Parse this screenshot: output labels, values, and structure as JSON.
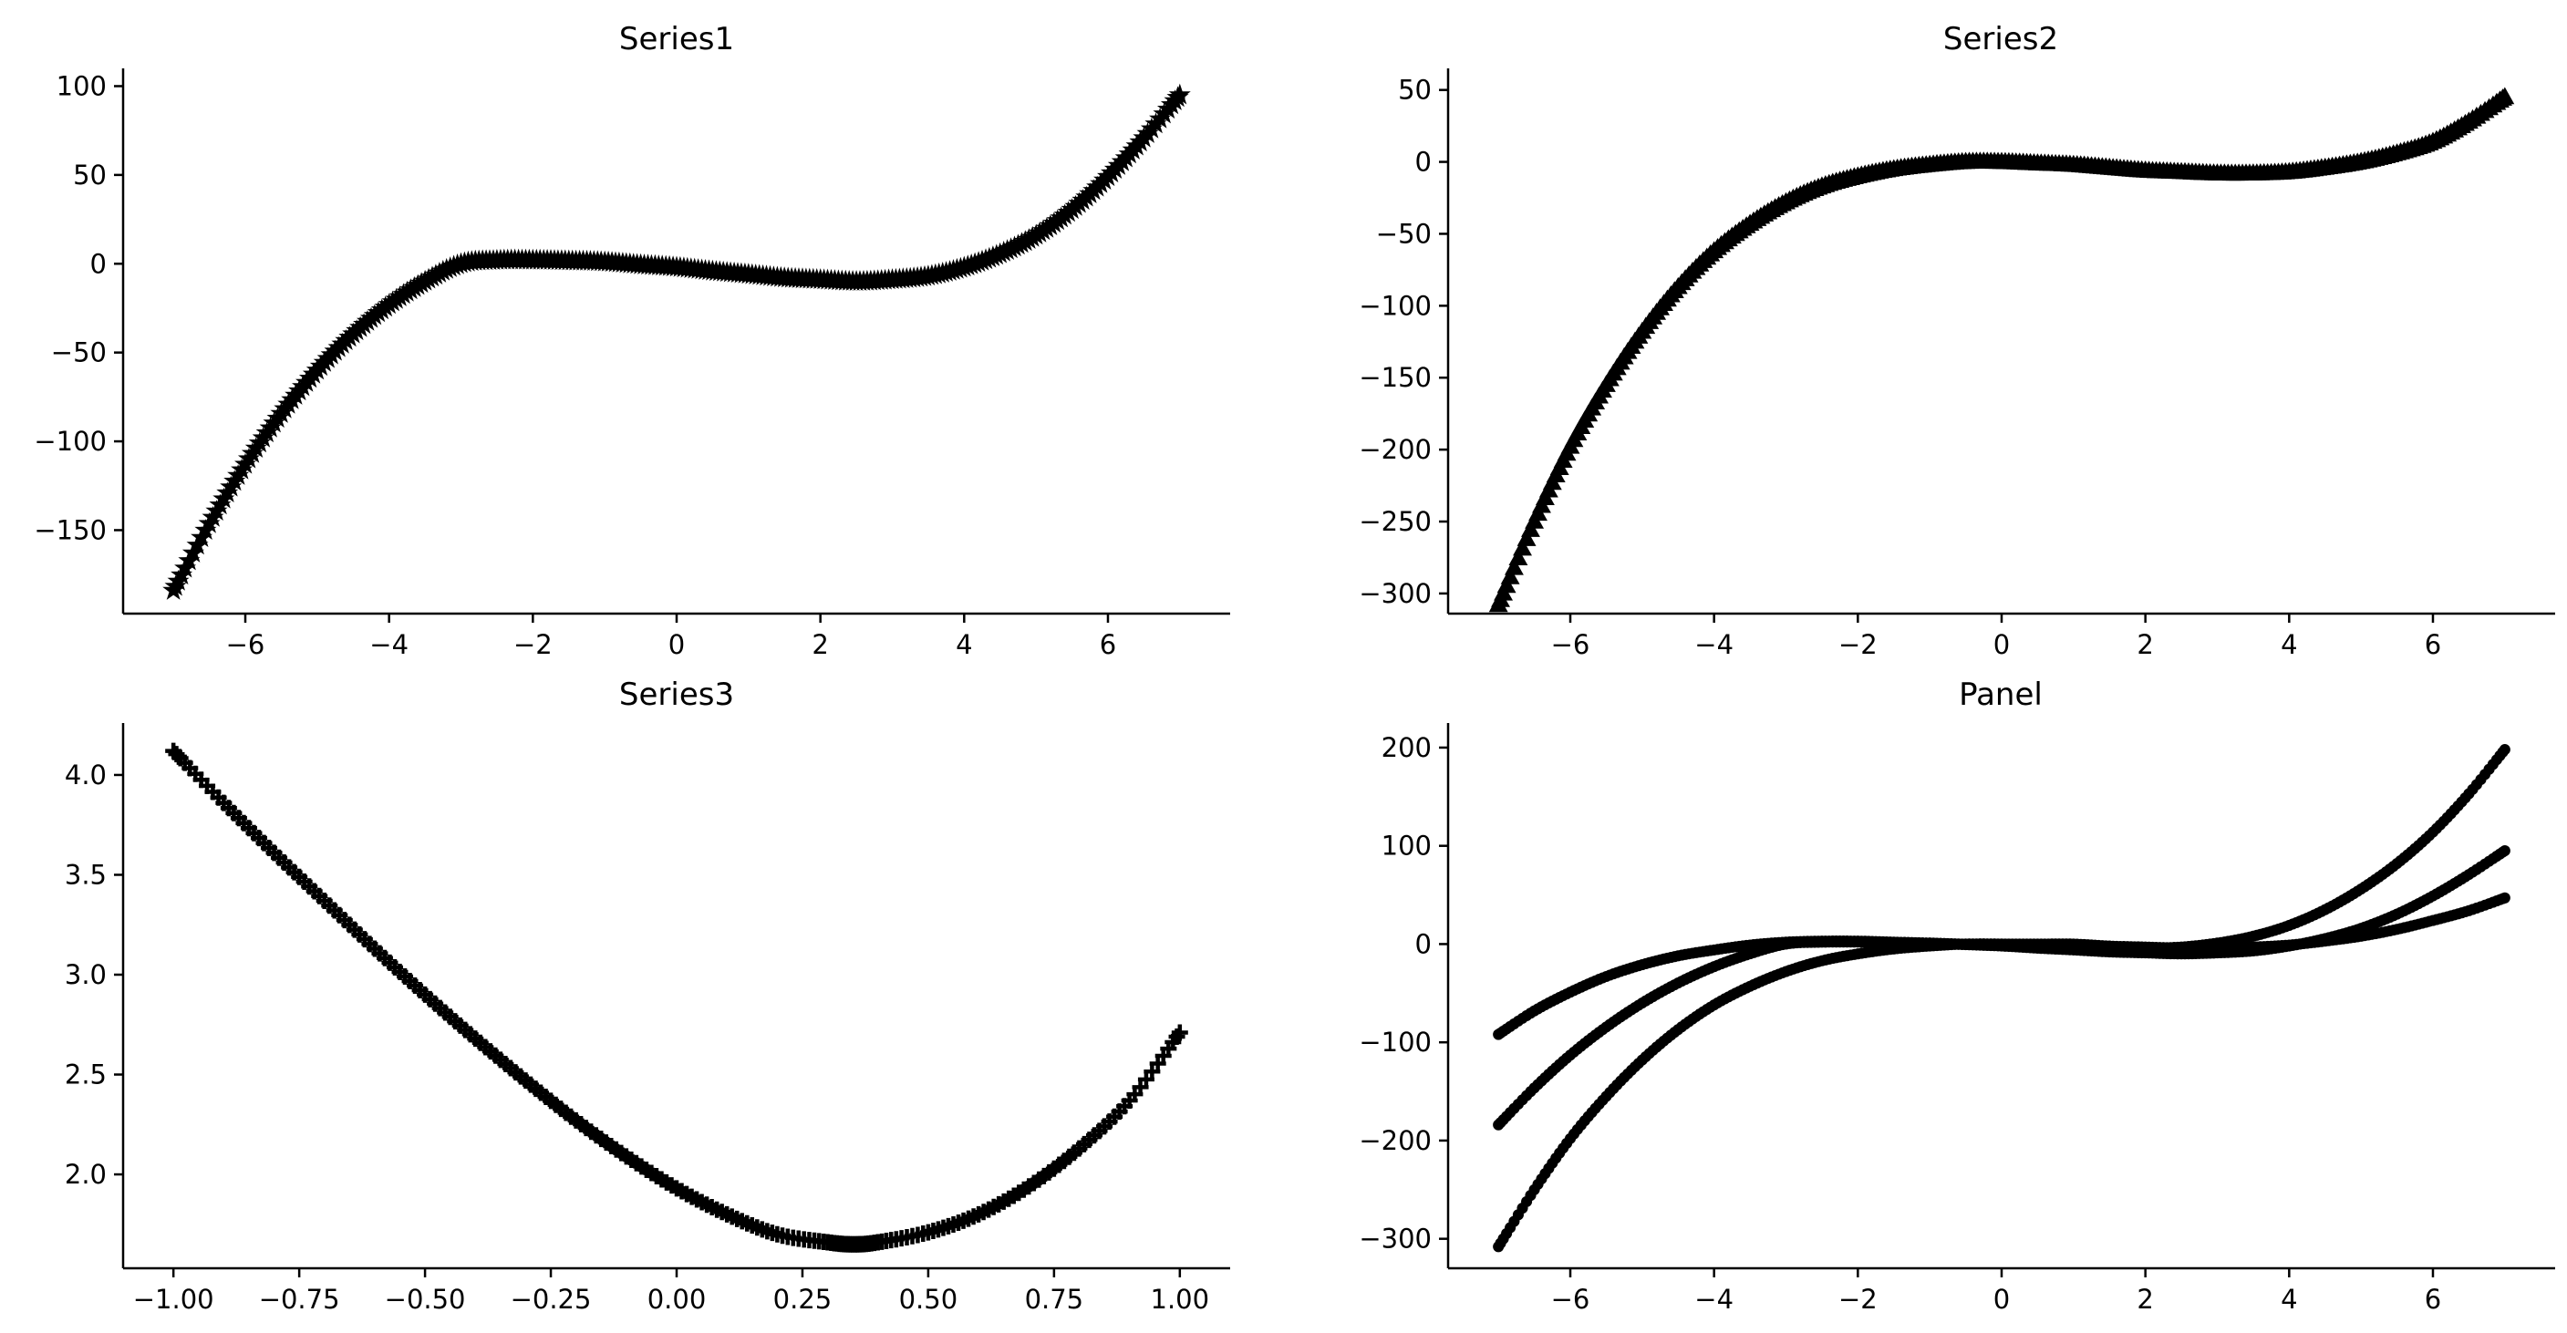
{
  "chart_data": [
    {
      "type": "scatter",
      "title": "Series1",
      "xlabel": "",
      "ylabel": "",
      "xlim": [
        -7.7,
        7.7
      ],
      "ylim": [
        -197,
        110
      ],
      "xticks": [
        -6,
        -4,
        -2,
        0,
        2,
        4,
        6
      ],
      "yticks": [
        -150,
        -100,
        -50,
        0,
        50,
        100
      ],
      "xtick_labels": [
        "−6",
        "−4",
        "−2",
        "0",
        "2",
        "4",
        "6"
      ],
      "ytick_labels": [
        "−150",
        "−100",
        "−50",
        "0",
        "50",
        "100"
      ],
      "marker": "star",
      "color": "#000000",
      "grid": false,
      "x": [
        -7.0,
        -6.5,
        -6.0,
        -5.5,
        -5.0,
        -4.5,
        -4.0,
        -3.5,
        -3.0,
        -2.5,
        -2.0,
        -1.5,
        -1.0,
        -0.5,
        0.0,
        0.5,
        1.0,
        1.5,
        2.0,
        2.5,
        3.0,
        3.5,
        4.0,
        4.5,
        5.0,
        5.5,
        6.0,
        6.5,
        7.0
      ],
      "values": [
        -184.0,
        -146.4,
        -113.0,
        -84.4,
        -60.0,
        -39.6,
        -23.0,
        -9.9,
        0.0,
        1.9,
        2.0,
        1.6,
        1.0,
        -0.6,
        -2.0,
        -4.2,
        -6.0,
        -8.0,
        -9.0,
        -10.0,
        -9.0,
        -7.0,
        -2.0,
        5.6,
        16.0,
        30.5,
        49.0,
        70.8,
        95.0
      ]
    },
    {
      "type": "scatter",
      "title": "Series2",
      "xlabel": "",
      "ylabel": "",
      "xlim": [
        -7.7,
        7.7
      ],
      "ylim": [
        -314,
        65
      ],
      "xticks": [
        -6,
        -4,
        -2,
        0,
        2,
        4,
        6
      ],
      "yticks": [
        -300,
        -250,
        -200,
        -150,
        -100,
        -50,
        0,
        50
      ],
      "xtick_labels": [
        "−6",
        "−4",
        "−2",
        "0",
        "2",
        "4",
        "6"
      ],
      "ytick_labels": [
        "−300",
        "−250",
        "−200",
        "−150",
        "−100",
        "−50",
        "0",
        "50"
      ],
      "marker": "triangle",
      "color": "#000000",
      "grid": false,
      "x": [
        -7.0,
        -6.5,
        -6.0,
        -5.5,
        -5.0,
        -4.5,
        -4.0,
        -3.5,
        -3.0,
        -2.5,
        -2.0,
        -1.5,
        -1.0,
        -0.5,
        0.0,
        0.5,
        1.0,
        1.5,
        2.0,
        2.5,
        3.0,
        3.5,
        4.0,
        4.5,
        5.0,
        5.5,
        6.0,
        6.5,
        7.0
      ],
      "values": [
        -308.0,
        -250.0,
        -198.0,
        -155.0,
        -118.0,
        -87.0,
        -62.0,
        -43.0,
        -28.0,
        -17.0,
        -10.0,
        -5.0,
        -2.0,
        0.0,
        0.0,
        -1.0,
        -2.0,
        -4.0,
        -6.0,
        -7.0,
        -8.0,
        -8.0,
        -7.0,
        -4.0,
        0.0,
        6.0,
        14.0,
        28.0,
        45.0
      ]
    },
    {
      "type": "scatter",
      "title": "Series3",
      "xlabel": "",
      "ylabel": "",
      "xlim": [
        -1.1,
        1.1
      ],
      "ylim": [
        1.53,
        4.26
      ],
      "xticks": [
        -1.0,
        -0.75,
        -0.5,
        -0.25,
        0.0,
        0.25,
        0.5,
        0.75,
        1.0
      ],
      "yticks": [
        2.0,
        2.5,
        3.0,
        3.5,
        4.0
      ],
      "xtick_labels": [
        "−1.00",
        "−0.75",
        "−0.50",
        "−0.25",
        "0.00",
        "0.25",
        "0.50",
        "0.75",
        "1.00"
      ],
      "ytick_labels": [
        "2.0",
        "2.5",
        "3.0",
        "3.5",
        "4.0"
      ],
      "marker": "plus",
      "color": "#000000",
      "grid": false,
      "x": [
        -1.0,
        -0.9,
        -0.8,
        -0.7,
        -0.6,
        -0.5,
        -0.4,
        -0.3,
        -0.2,
        -0.1,
        0.0,
        0.1,
        0.2,
        0.3,
        0.35,
        0.4,
        0.5,
        0.6,
        0.7,
        0.8,
        0.9,
        1.0
      ],
      "values": [
        4.12,
        3.86,
        3.61,
        3.37,
        3.13,
        2.9,
        2.68,
        2.47,
        2.27,
        2.09,
        1.93,
        1.8,
        1.7,
        1.66,
        1.65,
        1.66,
        1.71,
        1.8,
        1.94,
        2.13,
        2.37,
        2.71
      ]
    },
    {
      "type": "scatter",
      "title": "Panel",
      "xlabel": "",
      "ylabel": "",
      "xlim": [
        -7.7,
        7.7
      ],
      "ylim": [
        -330,
        225
      ],
      "xticks": [
        -6,
        -4,
        -2,
        0,
        2,
        4,
        6
      ],
      "yticks": [
        -300,
        -200,
        -100,
        0,
        100,
        200
      ],
      "xtick_labels": [
        "−6",
        "−4",
        "−2",
        "0",
        "2",
        "4",
        "6"
      ],
      "ytick_labels": [
        "−300",
        "−200",
        "−100",
        "0",
        "100",
        "200"
      ],
      "marker": "circle",
      "color": "#000000",
      "grid": false,
      "x": [
        -7.0,
        -6.5,
        -6.0,
        -5.5,
        -5.0,
        -4.5,
        -4.0,
        -3.5,
        -3.0,
        -2.5,
        -2.0,
        -1.5,
        -1.0,
        -0.5,
        0.0,
        0.5,
        1.0,
        1.5,
        2.0,
        2.5,
        3.0,
        3.5,
        4.0,
        4.5,
        5.0,
        5.5,
        6.0,
        6.5,
        7.0
      ],
      "series": [
        {
          "values": [
            -92.0,
            -68.0,
            -49.0,
            -33.0,
            -21.0,
            -12.0,
            -6.0,
            -1.0,
            2.0,
            3.0,
            3.0,
            2.0,
            1.0,
            0.0,
            0.0,
            0.0,
            0.0,
            -2.0,
            -3.0,
            -4.0,
            -4.0,
            -3.0,
            -1.0,
            3.0,
            8.0,
            15.0,
            24.0,
            34.0,
            47.0
          ]
        },
        {
          "values": [
            -184.0,
            -146.4,
            -113.0,
            -84.4,
            -60.0,
            -39.6,
            -23.0,
            -9.9,
            0.0,
            1.9,
            2.0,
            1.6,
            1.0,
            -0.6,
            -2.0,
            -4.2,
            -6.0,
            -8.0,
            -9.0,
            -10.0,
            -9.0,
            -7.0,
            -2.0,
            5.6,
            16.0,
            30.5,
            49.0,
            70.8,
            95.0
          ]
        },
        {
          "values": [
            -308.0,
            -250.0,
            -198.0,
            -155.0,
            -118.0,
            -87.0,
            -62.0,
            -43.0,
            -28.0,
            -17.0,
            -10.0,
            -5.0,
            -2.0,
            0.0,
            0.0,
            -1.0,
            -3.0,
            -4.0,
            -4.0,
            -3.0,
            1.0,
            8.0,
            19.0,
            35.0,
            56.0,
            82.0,
            114.0,
            153.0,
            198.0
          ]
        }
      ]
    }
  ]
}
